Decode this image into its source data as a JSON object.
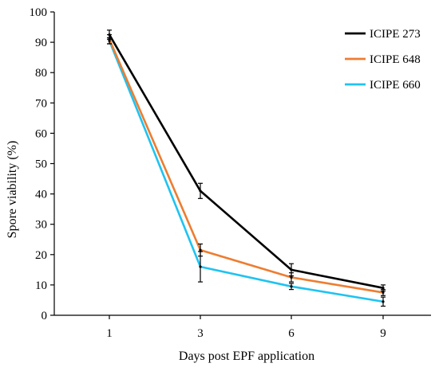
{
  "chart_data": {
    "type": "line",
    "title": "",
    "xlabel": "Days post EPF application",
    "ylabel": "Spore viability (%)",
    "categories": [
      "1",
      "3",
      "6",
      "9"
    ],
    "ylim": [
      0,
      100
    ],
    "yticks": [
      0,
      10,
      20,
      30,
      40,
      50,
      60,
      70,
      80,
      90,
      100
    ],
    "grid": false,
    "legend_position": "top-right",
    "series": [
      {
        "name": "ICIPE 273",
        "color": "#000000",
        "values": [
          92.5,
          41,
          15,
          9
        ],
        "errors": [
          1.5,
          2.5,
          2,
          1
        ]
      },
      {
        "name": "ICIPE 648",
        "color": "#ED7D31",
        "values": [
          91,
          21.5,
          12.5,
          7.5
        ],
        "errors": [
          1.5,
          2,
          1.5,
          1
        ]
      },
      {
        "name": "ICIPE 660",
        "color": "#1FC3F0",
        "values": [
          90.5,
          16,
          9.5,
          4.5
        ],
        "errors": [
          1,
          5,
          1,
          1.5
        ]
      }
    ]
  }
}
